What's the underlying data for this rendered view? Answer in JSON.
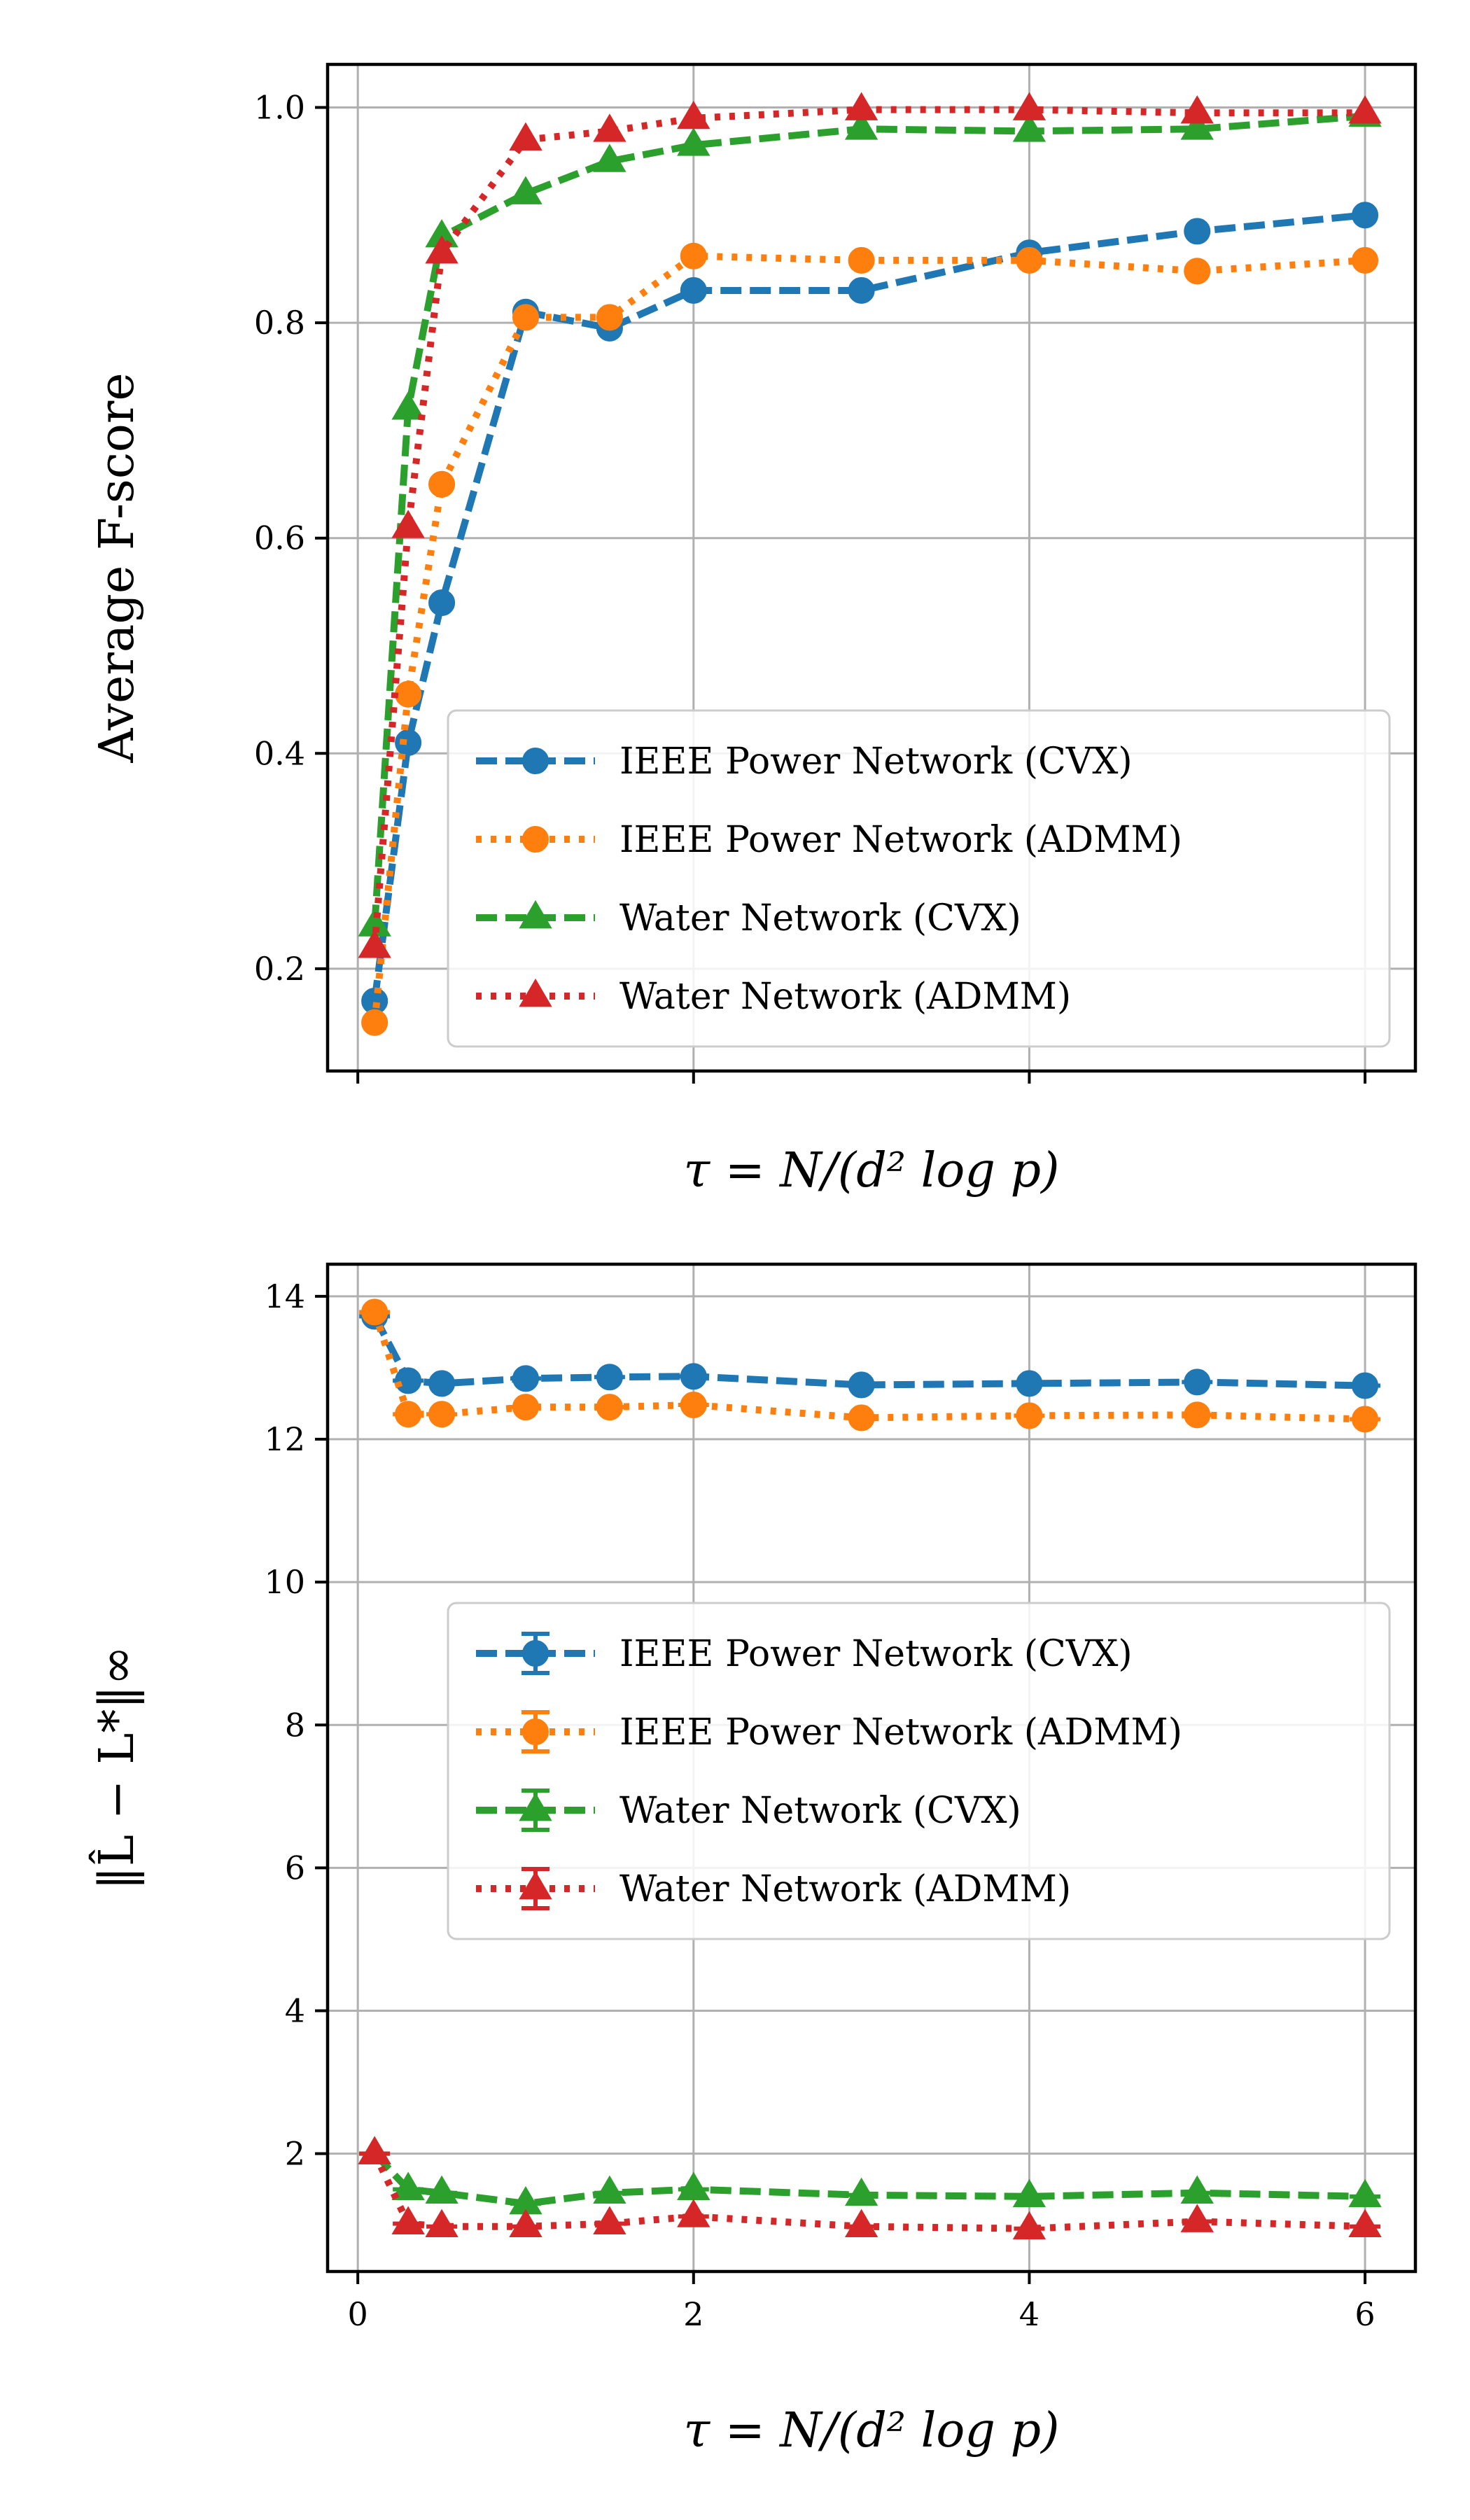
{
  "chart_data": [
    {
      "type": "line",
      "title": "",
      "xlabel": "τ = N/(d² log p)",
      "ylabel": "Average F-score",
      "xlim": [
        -0.18,
        6.3
      ],
      "ylim": [
        0.105,
        1.04
      ],
      "xticks": [
        0,
        2,
        4,
        6
      ],
      "xtick_labels": [
        "",
        "",
        "",
        ""
      ],
      "yticks": [
        0.2,
        0.4,
        0.6,
        0.8,
        1.0
      ],
      "ytick_labels": [
        "0.2",
        "0.4",
        "0.6",
        "0.8",
        "1.0"
      ],
      "grid": true,
      "legend_position": "lower-right",
      "x": [
        0.1,
        0.3,
        0.5,
        1.0,
        1.5,
        2.0,
        3.0,
        4.0,
        5.0,
        6.0
      ],
      "series": [
        {
          "name": "IEEE Power Network (CVX)",
          "color": "#1f77b4",
          "marker": "circle",
          "linestyle": "dashed",
          "values": [
            0.17,
            0.41,
            0.54,
            0.81,
            0.795,
            0.83,
            0.83,
            0.865,
            0.885,
            0.9
          ]
        },
        {
          "name": "IEEE Power Network (ADMM)",
          "color": "#ff7f0e",
          "marker": "circle",
          "linestyle": "dotted",
          "values": [
            0.15,
            0.455,
            0.65,
            0.805,
            0.805,
            0.862,
            0.858,
            0.858,
            0.848,
            0.858
          ]
        },
        {
          "name": "Water Network (CVX)",
          "color": "#2ca02c",
          "marker": "triangle",
          "linestyle": "dashed",
          "values": [
            0.24,
            0.72,
            0.88,
            0.92,
            0.95,
            0.965,
            0.98,
            0.978,
            0.98,
            0.992
          ]
        },
        {
          "name": "Water Network (ADMM)",
          "color": "#d62728",
          "marker": "triangle",
          "linestyle": "dotted",
          "values": [
            0.22,
            0.61,
            0.865,
            0.97,
            0.978,
            0.99,
            0.998,
            0.998,
            0.995,
            0.995
          ]
        }
      ]
    },
    {
      "type": "line",
      "title": "",
      "xlabel": "τ = N/(d² log p)",
      "ylabel": "‖L̂ − L*‖∞",
      "xlim": [
        -0.18,
        6.3
      ],
      "ylim": [
        0.35,
        14.45
      ],
      "xticks": [
        0,
        2,
        4,
        6
      ],
      "xtick_labels": [
        "0",
        "2",
        "4",
        "6"
      ],
      "yticks": [
        2,
        4,
        6,
        8,
        10,
        12,
        14
      ],
      "ytick_labels": [
        "2",
        "4",
        "6",
        "8",
        "10",
        "12",
        "14"
      ],
      "grid": true,
      "legend_position": "center-right",
      "error_bars": true,
      "x": [
        0.1,
        0.3,
        0.5,
        1.0,
        1.5,
        2.0,
        3.0,
        4.0,
        5.0,
        6.0
      ],
      "series": [
        {
          "name": "IEEE Power Network (CVX)",
          "color": "#1f77b4",
          "marker": "circle",
          "linestyle": "dashed",
          "values": [
            13.72,
            12.82,
            12.78,
            12.85,
            12.87,
            12.88,
            12.76,
            12.78,
            12.8,
            12.75
          ]
        },
        {
          "name": "IEEE Power Network (ADMM)",
          "color": "#ff7f0e",
          "marker": "circle",
          "linestyle": "dotted",
          "values": [
            13.78,
            12.35,
            12.35,
            12.45,
            12.45,
            12.48,
            12.3,
            12.33,
            12.34,
            12.28
          ]
        },
        {
          "name": "Water Network (CVX)",
          "color": "#2ca02c",
          "marker": "triangle",
          "linestyle": "dashed",
          "values": [
            2.0,
            1.5,
            1.45,
            1.3,
            1.45,
            1.5,
            1.42,
            1.4,
            1.45,
            1.4
          ]
        },
        {
          "name": "Water Network (ADMM)",
          "color": "#d62728",
          "marker": "triangle",
          "linestyle": "dotted",
          "values": [
            2.0,
            1.02,
            0.98,
            0.98,
            1.02,
            1.12,
            0.98,
            0.95,
            1.05,
            0.98
          ]
        }
      ]
    }
  ]
}
